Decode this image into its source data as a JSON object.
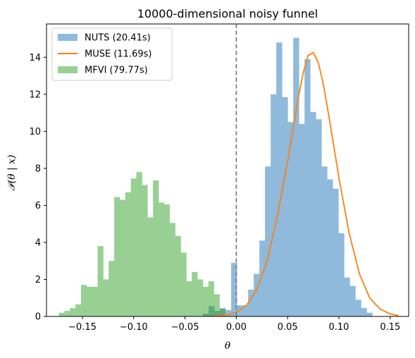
{
  "chart_data": {
    "type": "histogram",
    "title": "10000-dimensional noisy funnel",
    "xlabel": "θ",
    "ylabel": "𝒫(θ | x)",
    "xlim": [
      -0.185,
      0.168
    ],
    "ylim": [
      0,
      15.8
    ],
    "xticks": [
      -0.15,
      -0.1,
      -0.05,
      0.0,
      0.05,
      0.1,
      0.15
    ],
    "xtick_labels": [
      "−0.15",
      "−0.10",
      "−0.05",
      "0.00",
      "0.05",
      "0.10",
      "0.15"
    ],
    "yticks": [
      0,
      2,
      4,
      6,
      8,
      10,
      12,
      14
    ],
    "ytick_labels": [
      "0",
      "2",
      "4",
      "6",
      "8",
      "10",
      "12",
      "14"
    ],
    "grid": false,
    "legend_position": "top-left",
    "reference_line": {
      "x": 0.0,
      "style": "dashed",
      "color": "#808080"
    },
    "series": [
      {
        "name": "NUTS (20.41s)",
        "kind": "histogram",
        "color": "#8fbadb",
        "bin_start": -0.0325,
        "bin_width": 0.0055,
        "values": [
          0.15,
          0.55,
          0.3,
          0.45,
          0.35,
          2.9,
          0.6,
          0.6,
          1.45,
          2.3,
          4.1,
          8.1,
          12.0,
          14.8,
          11.85,
          10.5,
          15.05,
          10.4,
          13.9,
          11.05,
          10.65,
          8.1,
          7.4,
          6.9,
          4.5,
          2.1,
          1.65,
          0.9,
          0.45,
          0.2
        ]
      },
      {
        "name": "MUSE (11.69s)",
        "kind": "line",
        "color": "#ff7f0e",
        "x": [
          -0.03,
          -0.02,
          -0.01,
          0.0,
          0.01,
          0.02,
          0.03,
          0.04,
          0.05,
          0.055,
          0.06,
          0.065,
          0.07,
          0.075,
          0.08,
          0.085,
          0.09,
          0.1,
          0.11,
          0.12,
          0.13,
          0.14,
          0.15,
          0.158
        ],
        "y": [
          0.0,
          0.02,
          0.07,
          0.22,
          0.6,
          1.45,
          3.0,
          5.4,
          8.4,
          10.0,
          11.7,
          13.1,
          14.1,
          14.25,
          13.7,
          12.5,
          10.9,
          7.5,
          4.5,
          2.3,
          1.0,
          0.4,
          0.13,
          0.05
        ]
      },
      {
        "name": "MFVI (79.77s)",
        "kind": "histogram",
        "color": "#98d094",
        "bin_start": -0.173,
        "bin_width": 0.0054,
        "values": [
          0.2,
          0.3,
          0.45,
          0.65,
          1.7,
          1.6,
          1.6,
          3.8,
          2.0,
          3.0,
          6.45,
          6.3,
          6.7,
          7.45,
          7.8,
          7.1,
          5.35,
          7.35,
          6.15,
          6.05,
          5.05,
          4.35,
          3.45,
          1.9,
          2.4,
          2.0,
          1.6,
          1.9,
          1.2,
          0.4
        ]
      }
    ],
    "overlap_color": "#5ca97c"
  }
}
